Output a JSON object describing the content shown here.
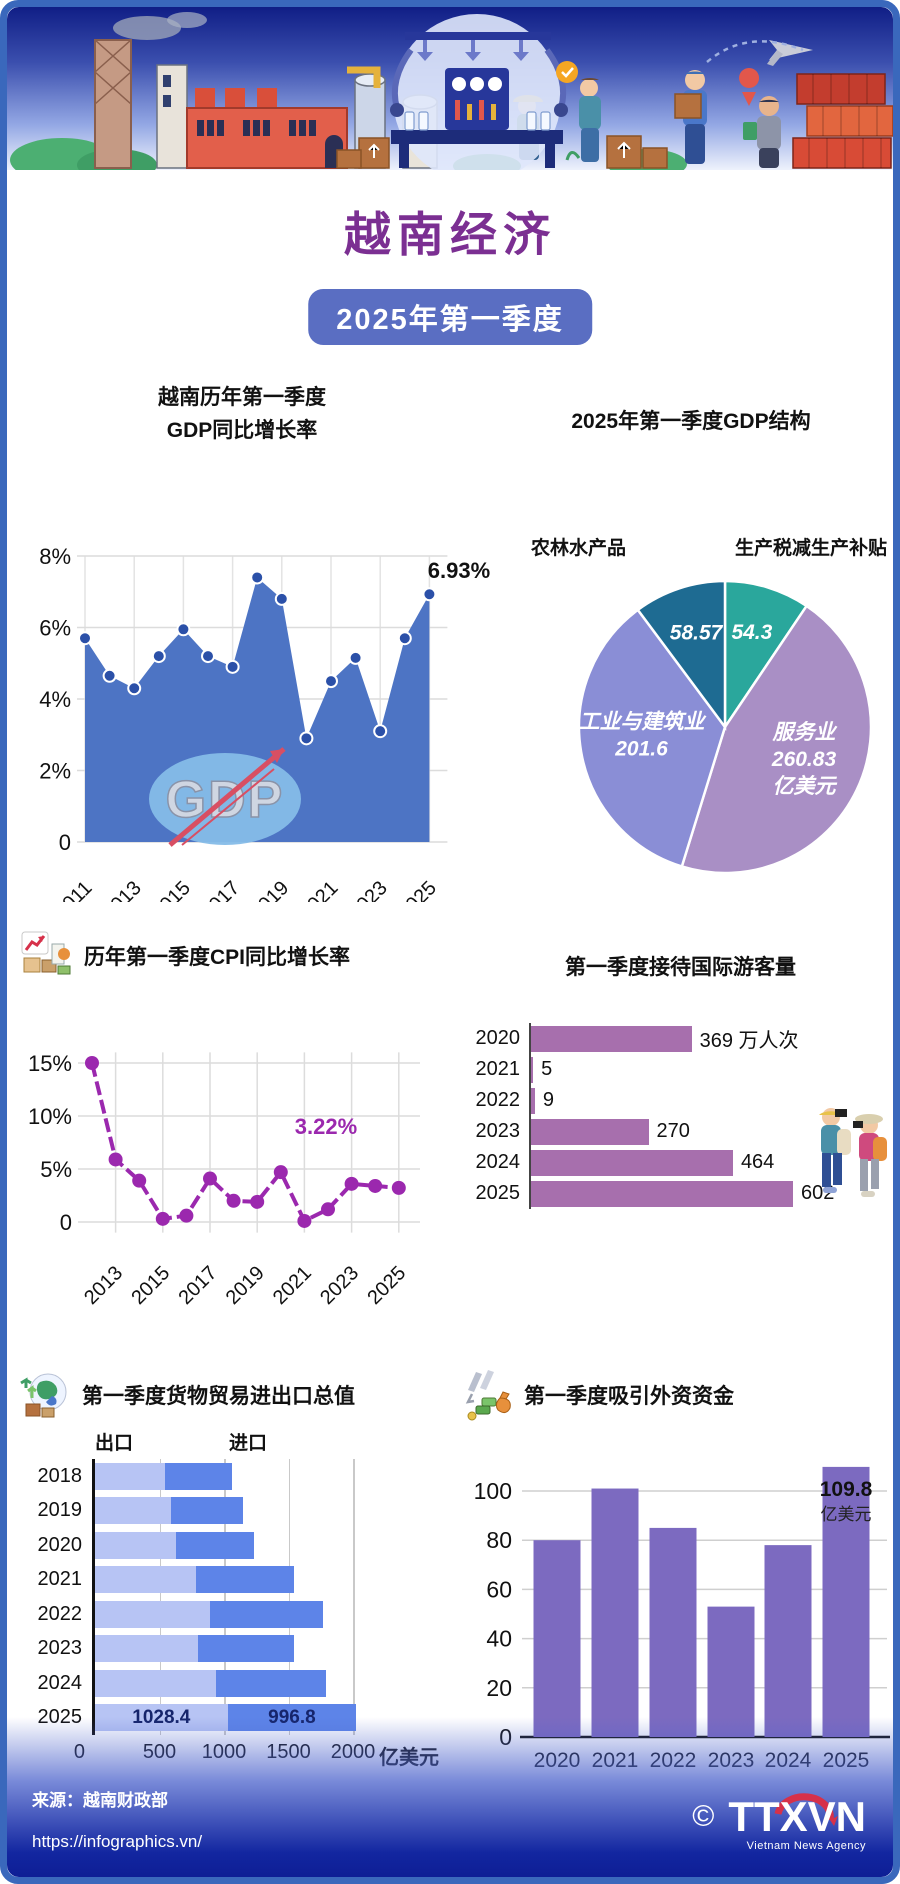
{
  "header": {
    "title": "越南经济",
    "period_badge": "2025年第一季度"
  },
  "charts": {
    "gdp": {
      "title_line1": "越南历年第一季度",
      "title_line2": "GDP同比增长率",
      "annotation": "6.93%",
      "watermark": "GDP",
      "chart_data": {
        "type": "area",
        "x": [
          2011,
          2012,
          2013,
          2014,
          2015,
          2016,
          2017,
          2018,
          2019,
          2020,
          2021,
          2022,
          2023,
          2024,
          2025
        ],
        "values": [
          5.7,
          4.65,
          4.3,
          5.2,
          5.95,
          5.2,
          4.9,
          7.4,
          6.8,
          2.9,
          4.5,
          5.15,
          3.1,
          5.7,
          6.93
        ],
        "xticks": [
          2011,
          2013,
          2015,
          2017,
          2019,
          2021,
          2023,
          2025
        ],
        "yticks": [
          0,
          2,
          4,
          6,
          8
        ],
        "ytick_labels": [
          "0",
          "2%",
          "4%",
          "6%",
          "8%"
        ],
        "ylim": [
          0,
          8
        ],
        "unit": "%",
        "area_color": "#4d74c4",
        "dot_color": "#2b50a8",
        "grid": true
      }
    },
    "gdp_structure": {
      "title": "2025年第一季度GDP结构",
      "label_left": "农林水产品",
      "label_right": "生产税减生产补贴",
      "chart_data": {
        "type": "pie",
        "unit": "亿美元",
        "start_at_12_clockwise": true,
        "slices": [
          {
            "name": "生产税减生产补贴",
            "value": 54.3,
            "color": "#2aa79c",
            "label_lines": [
              "54.3"
            ],
            "lr": 0.63
          },
          {
            "name": "服务业",
            "value": 260.83,
            "color": "#a98fc5",
            "label_lines": [
              "服务业",
              "260.83",
              "亿美元"
            ],
            "lr": 0.6
          },
          {
            "name": "工业与建筑业",
            "value": 201.6,
            "color": "#8a8ed6",
            "label_lines": [
              "工业与建筑业",
              "201.6"
            ],
            "lr": 0.58
          },
          {
            "name": "农林水产品",
            "value": 58.57,
            "color": "#1e6b92",
            "label_lines": [
              "58.57"
            ],
            "lr": 0.63
          }
        ]
      }
    },
    "cpi": {
      "title": "历年第一季度CPI同比增长率",
      "annotation": "3.22%",
      "chart_data": {
        "type": "line",
        "x": [
          2012,
          2013,
          2014,
          2015,
          2016,
          2017,
          2018,
          2019,
          2020,
          2021,
          2022,
          2023,
          2024,
          2025
        ],
        "values": [
          15.0,
          5.9,
          3.9,
          0.3,
          0.6,
          4.1,
          2.0,
          1.9,
          4.7,
          0.1,
          1.2,
          3.6,
          3.4,
          3.22
        ],
        "xticks": [
          2013,
          2015,
          2017,
          2019,
          2021,
          2023,
          2025
        ],
        "yticks": [
          0,
          5,
          10,
          15
        ],
        "ytick_labels": [
          "0",
          "5%",
          "10%",
          "15%"
        ],
        "ylim": [
          -1,
          16
        ],
        "unit": "%",
        "line_color": "#9b28ae",
        "grid": true
      }
    },
    "tourists": {
      "title": "第一季度接待国际游客量",
      "unit": "万人次",
      "chart_data": {
        "type": "bar",
        "orientation": "horizontal",
        "categories": [
          "2020",
          "2021",
          "2022",
          "2023",
          "2024",
          "2025"
        ],
        "values": [
          369,
          5,
          9,
          270,
          464,
          602
        ],
        "value_labels": [
          "369 万人次",
          "5",
          "9",
          "270",
          "464",
          "602"
        ],
        "bar_color": "#a76fad",
        "xmax": 602
      }
    },
    "trade": {
      "title": "第一季度货物贸易进出口总值",
      "legend_export": "出口",
      "legend_import": "进口",
      "axis_unit": "亿美元",
      "chart_data": {
        "type": "bar",
        "stacked": true,
        "orientation": "horizontal",
        "categories": [
          "2018",
          "2019",
          "2020",
          "2021",
          "2022",
          "2023",
          "2024",
          "2025"
        ],
        "series": [
          {
            "name": "出口",
            "color": "#b7c4f4",
            "values": [
              545,
              590,
              630,
              780,
              890,
              795,
              935,
              1028.4
            ]
          },
          {
            "name": "进口",
            "color": "#5d84e8",
            "values": [
              515,
              560,
              600,
              760,
              875,
              750,
              855,
              996.8
            ]
          }
        ],
        "labeled_year": "2025",
        "value_labels_2025": [
          "1028.4",
          "996.8"
        ],
        "xticks": [
          0,
          500,
          1000,
          1500,
          2000
        ],
        "xlim": [
          0,
          2200
        ]
      }
    },
    "fdi": {
      "title": "第一季度吸引外资资金",
      "annotation_value": "109.8",
      "annotation_unit": "亿美元",
      "chart_data": {
        "type": "bar",
        "orientation": "vertical",
        "categories": [
          "2020",
          "2021",
          "2022",
          "2023",
          "2024",
          "2025"
        ],
        "values": [
          80,
          101,
          85,
          53,
          78,
          109.8
        ],
        "yticks": [
          0,
          20,
          40,
          60,
          80,
          100
        ],
        "ylim": [
          0,
          116
        ],
        "bar_color": "#7c6ac0",
        "grid": true
      }
    }
  },
  "footer": {
    "source": "来源：越南财政部",
    "url": "https://infographics.vn/",
    "copyright": "©",
    "agency_abbr": "TTXVN",
    "agency_name": "Vietnam News Agency"
  }
}
